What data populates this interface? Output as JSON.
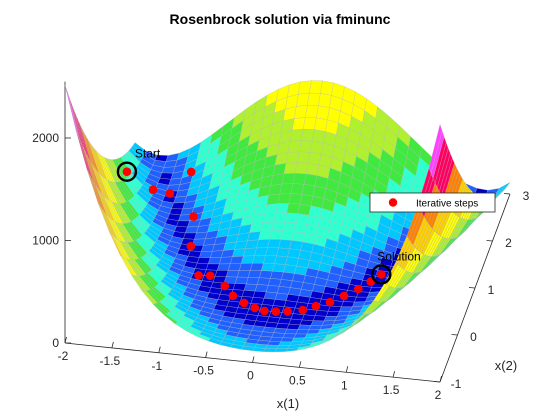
{
  "chart_data": {
    "type": "surface",
    "title": "Rosenbrock solution via fminunc",
    "xlabel": "x(1)",
    "ylabel": "x(2)",
    "zlabel": "",
    "xlim": [
      -2,
      2
    ],
    "ylim": [
      -1,
      3
    ],
    "zlim": [
      0,
      2500
    ],
    "x_ticks": [
      "-2",
      "-1.5",
      "-1",
      "-0.5",
      "0",
      "0.5",
      "1",
      "1.5",
      "2"
    ],
    "y_ticks": [
      "-1",
      "0",
      "1",
      "2",
      "3"
    ],
    "z_ticks": [
      "0",
      "1000",
      "2000"
    ],
    "z_tick_values": [
      0,
      1000,
      2000
    ],
    "surface_function": "Rosenbrock: 100*(x2 - x1^2)^2 + (1 - x1)^2",
    "colormap_hex": [
      "#0000cc",
      "#2060ff",
      "#00c8ff",
      "#30ffd0",
      "#40e840",
      "#b0f030",
      "#ffff00",
      "#ffd000",
      "#ff8000",
      "#ff0060",
      "#ff40ff"
    ],
    "grid": true,
    "legend": {
      "position": "top-right",
      "entries": [
        "Iterative steps"
      ]
    },
    "series": [
      {
        "name": "Iterative steps",
        "type": "scatter3d",
        "color": "#ff0000",
        "points": [
          [
            -1.9,
            2,
            267
          ],
          [
            -1.64,
            2.1,
            70
          ],
          [
            -1.48,
            2.2,
            3.2
          ],
          [
            -1.3,
            2.46,
            111
          ],
          [
            -1.1,
            1.52,
            125
          ],
          [
            -1.06,
            1.15,
            10
          ],
          [
            -0.87,
            0.58,
            4.2
          ],
          [
            -0.75,
            0.6,
            3.9
          ],
          [
            -0.56,
            0.42,
            3.6
          ],
          [
            -0.44,
            0.24,
            2.2
          ],
          [
            -0.3,
            0.12,
            1.7
          ],
          [
            -0.17,
            0.04,
            1.4
          ],
          [
            -0.06,
            0.0,
            1.1
          ],
          [
            0.06,
            0.01,
            0.9
          ],
          [
            0.18,
            0.04,
            0.7
          ],
          [
            0.33,
            0.1,
            0.45
          ],
          [
            0.45,
            0.21,
            0.3
          ],
          [
            0.58,
            0.32,
            0.2
          ],
          [
            0.7,
            0.48,
            0.1
          ],
          [
            0.82,
            0.65,
            0.05
          ],
          [
            0.92,
            0.83,
            0.03
          ],
          [
            1.0,
            1.0,
            0.0
          ]
        ]
      }
    ],
    "annotations": [
      {
        "label": "Start",
        "point": [
          -1.9,
          2,
          267
        ]
      },
      {
        "label": "Solution",
        "point": [
          1.0,
          1.0,
          0.0
        ]
      }
    ]
  }
}
